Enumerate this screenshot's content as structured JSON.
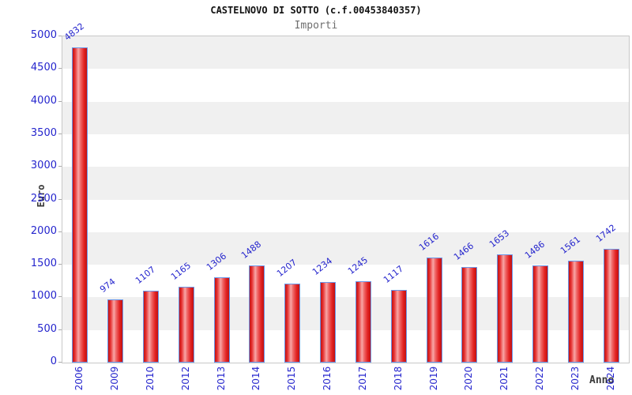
{
  "header": {
    "title": "CASTELNOVO DI SOTTO (c.f.00453840357)",
    "subtitle": "Importi"
  },
  "chart_data": {
    "type": "bar",
    "title": "CASTELNOVO DI SOTTO (c.f.00453840357)",
    "subtitle": "Importi",
    "xlabel": "Anno",
    "ylabel": "Euro",
    "categories": [
      "2006",
      "2009",
      "2010",
      "2012",
      "2013",
      "2014",
      "2015",
      "2016",
      "2017",
      "2018",
      "2019",
      "2020",
      "2021",
      "2022",
      "2023",
      "2024"
    ],
    "values": [
      4832,
      974,
      1107,
      1165,
      1306,
      1488,
      1207,
      1234,
      1245,
      1117,
      1616,
      1466,
      1653,
      1486,
      1561,
      1742
    ],
    "ylim": [
      0,
      5000
    ],
    "yticks": [
      0,
      500,
      1000,
      1500,
      2000,
      2500,
      3000,
      3500,
      4000,
      4500,
      5000
    ],
    "grid": "alternating-horizontal-bands",
    "legend_position": "none",
    "colors": {
      "bar_fill": "#e22222",
      "bar_fill_highlight": "#f8a6a6",
      "bar_border": "#6b96e8",
      "axis_tick_label": "#2525cd",
      "value_label": "#2525cd",
      "band_gray": "#f0f0f0",
      "plot_border": "#c8c8c8",
      "title": "#111111",
      "subtitle": "#6e6e6e",
      "axis_title": "#3a3a3a"
    }
  }
}
